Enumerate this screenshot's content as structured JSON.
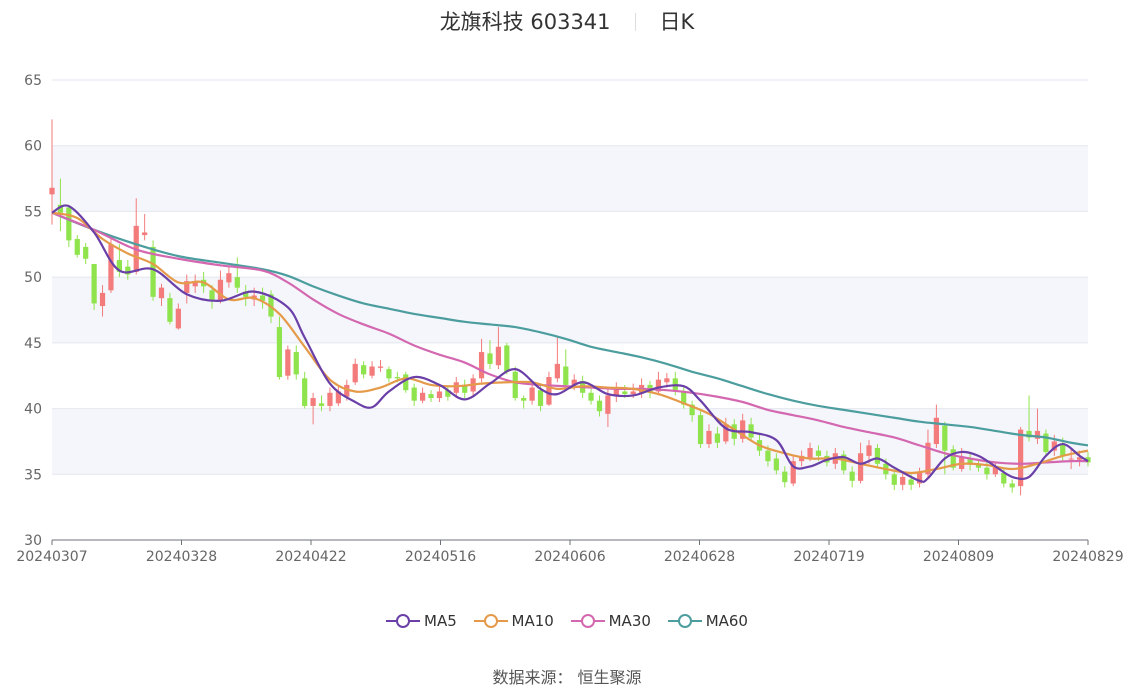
{
  "header": {
    "stock_name_code": "龙旗科技 603341",
    "period": "日K"
  },
  "source": {
    "label": "数据来源：",
    "value": "恒生聚源"
  },
  "colors": {
    "up": "#f37b7b",
    "down": "#8fe34c",
    "ma5": "#6a3fa8",
    "ma10": "#e59a4a",
    "ma30": "#d468b0",
    "ma60": "#4c9d9e",
    "band": "#f4f6fb",
    "grid": "#e4e7f0",
    "axis": "#666666"
  },
  "chart_data": {
    "type": "candlestick",
    "title": "龙旗科技 603341 日K",
    "ylim": [
      30,
      65
    ],
    "yticks": [
      30,
      35,
      40,
      45,
      50,
      55,
      60,
      65
    ],
    "xticks": [
      "20240307",
      "20240328",
      "20240422",
      "20240516",
      "20240606",
      "20240628",
      "20240719",
      "20240809",
      "20240829"
    ],
    "trading_days": 124,
    "legend": [
      {
        "key": "ma5",
        "label": "MA5"
      },
      {
        "key": "ma10",
        "label": "MA10"
      },
      {
        "key": "ma30",
        "label": "MA30"
      },
      {
        "key": "ma60",
        "label": "MA60"
      }
    ],
    "ohlc": [
      [
        56.3,
        56.8,
        62,
        54
      ],
      [
        55.5,
        54.9,
        57.5,
        53.5
      ],
      [
        55.3,
        52.8,
        55.5,
        52.3
      ],
      [
        52.9,
        51.7,
        53.2,
        51.5
      ],
      [
        52.3,
        51.4,
        52.6,
        51
      ],
      [
        51,
        48,
        51,
        47.5
      ],
      [
        47.8,
        48.8,
        49.4,
        47
      ],
      [
        49,
        52.5,
        53,
        48.8
      ],
      [
        51.3,
        50.4,
        52.5,
        50
      ],
      [
        50.8,
        50.2,
        51.3,
        49.8
      ],
      [
        50.4,
        53.9,
        56,
        50.2
      ],
      [
        53.2,
        53.4,
        54.8,
        52.8
      ],
      [
        52.3,
        48.5,
        52.8,
        48.2
      ],
      [
        48.4,
        49.2,
        49.5,
        47.8
      ],
      [
        48.4,
        46.6,
        48.8,
        46.4
      ],
      [
        46.1,
        47.6,
        48,
        46
      ],
      [
        48.8,
        49.7,
        50.2,
        48
      ],
      [
        49.3,
        49.6,
        50.2,
        48.8
      ],
      [
        49.8,
        49.3,
        50.4,
        48.8
      ],
      [
        49,
        48.3,
        49.4,
        47.6
      ],
      [
        48.2,
        49.8,
        50.5,
        48
      ],
      [
        49.6,
        50.3,
        50.8,
        49.2
      ],
      [
        50,
        49.2,
        51.5,
        48.8
      ],
      [
        48.9,
        48.5,
        49.4,
        47.8
      ],
      [
        48.3,
        48.6,
        49.2,
        47.8
      ],
      [
        48.6,
        48.2,
        49.2,
        47.6
      ],
      [
        48.7,
        47,
        49,
        46.5
      ],
      [
        46.2,
        42.4,
        47,
        42.2
      ],
      [
        42.5,
        44.5,
        44.8,
        42.2
      ],
      [
        44.3,
        42.6,
        44.8,
        42.2
      ],
      [
        42.3,
        40.2,
        42.8,
        40
      ],
      [
        40.2,
        40.8,
        41.2,
        38.8
      ],
      [
        40.4,
        40.2,
        41,
        39.8
      ],
      [
        40.2,
        41.2,
        41.6,
        39.8
      ],
      [
        40.4,
        41.3,
        41.8,
        40.2
      ],
      [
        40.9,
        41.8,
        42.2,
        40.6
      ],
      [
        42,
        43.4,
        43.8,
        41.8
      ],
      [
        43.3,
        42.6,
        43.6,
        42.3
      ],
      [
        42.5,
        43.2,
        43.6,
        42.3
      ],
      [
        43.1,
        43.2,
        43.7,
        42.8
      ],
      [
        43,
        42.3,
        43.2,
        42
      ],
      [
        42.4,
        42.3,
        42.8,
        42
      ],
      [
        42.6,
        41.4,
        42.8,
        41.2
      ],
      [
        41.6,
        40.6,
        41.9,
        40.2
      ],
      [
        40.6,
        41.2,
        41.6,
        40.4
      ],
      [
        41.1,
        40.8,
        41.4,
        40.5
      ],
      [
        40.8,
        41.3,
        41.8,
        40.5
      ],
      [
        41.4,
        40.9,
        41.7,
        40.6
      ],
      [
        41.2,
        42,
        42.4,
        40.8
      ],
      [
        41.8,
        41.2,
        42.2,
        40.8
      ],
      [
        41.3,
        42.3,
        42.6,
        41
      ],
      [
        42.3,
        44.3,
        45.3,
        42
      ],
      [
        44.2,
        43.4,
        45.2,
        43
      ],
      [
        43.3,
        44.7,
        46.2,
        43
      ],
      [
        44.8,
        42.8,
        45,
        42.6
      ],
      [
        42.8,
        40.8,
        43.2,
        40.6
      ],
      [
        40.8,
        40.6,
        41,
        40
      ],
      [
        40.6,
        41.6,
        42,
        40.3
      ],
      [
        41.4,
        40.2,
        41.8,
        39.8
      ],
      [
        40.3,
        42.4,
        42.8,
        40.2
      ],
      [
        42.3,
        43.4,
        45.4,
        42
      ],
      [
        43.2,
        41.8,
        44.5,
        41.5
      ],
      [
        41.8,
        42.2,
        42.6,
        41.4
      ],
      [
        42.1,
        41.2,
        42.5,
        40.8
      ],
      [
        41.2,
        40.6,
        41.6,
        40.3
      ],
      [
        40.6,
        39.8,
        41,
        39.4
      ],
      [
        39.6,
        41,
        41.6,
        38.6
      ],
      [
        41,
        41.5,
        42,
        40.5
      ],
      [
        41.3,
        41.1,
        41.8,
        40.8
      ],
      [
        41.1,
        41.3,
        41.9,
        40.8
      ],
      [
        41.2,
        41.8,
        42.3,
        40.8
      ],
      [
        41.8,
        41.2,
        42.1,
        40.8
      ],
      [
        41.3,
        42.2,
        42.8,
        41
      ],
      [
        42,
        42.3,
        42.7,
        41.6
      ],
      [
        42.3,
        41.4,
        42.8,
        41
      ],
      [
        41.3,
        40.3,
        41.6,
        40
      ],
      [
        40.3,
        39.5,
        40.6,
        39
      ],
      [
        39.5,
        37.3,
        39.8,
        37
      ],
      [
        37.3,
        38.3,
        38.8,
        37
      ],
      [
        38.1,
        37.4,
        38.6,
        37
      ],
      [
        37.5,
        38.8,
        39.3,
        37.3
      ],
      [
        38.8,
        37.7,
        39.2,
        37.2
      ],
      [
        37.7,
        39.1,
        39.6,
        37.4
      ],
      [
        38.8,
        37.8,
        39.3,
        37.5
      ],
      [
        37.6,
        36.8,
        38,
        36.4
      ],
      [
        36.8,
        36,
        37.2,
        35.6
      ],
      [
        36.2,
        35.3,
        36.6,
        35
      ],
      [
        35.2,
        34.4,
        35.6,
        34
      ],
      [
        34.3,
        36,
        36.4,
        34.1
      ],
      [
        36,
        36.4,
        36.8,
        35.6
      ],
      [
        36.2,
        37,
        37.4,
        36
      ],
      [
        36.8,
        36.4,
        37.2,
        36
      ],
      [
        36.4,
        35.9,
        36.8,
        35.6
      ],
      [
        35.8,
        36.6,
        37,
        35.4
      ],
      [
        36.5,
        35.3,
        36.8,
        35
      ],
      [
        35.2,
        34.5,
        35.6,
        34
      ],
      [
        34.5,
        36.6,
        37.4,
        34.3
      ],
      [
        36.4,
        37.2,
        37.6,
        35.8
      ],
      [
        37,
        35.8,
        37.3,
        35.5
      ],
      [
        35.8,
        35,
        36.2,
        34.6
      ],
      [
        35,
        34.2,
        35.4,
        33.8
      ],
      [
        34.2,
        34.8,
        35.2,
        33.8
      ],
      [
        34.6,
        34.2,
        35,
        33.8
      ],
      [
        34.3,
        35.1,
        35.5,
        34
      ],
      [
        35,
        37.4,
        38.4,
        34.6
      ],
      [
        37.3,
        39.3,
        40.3,
        37
      ],
      [
        38.7,
        36.8,
        39,
        35
      ],
      [
        36.9,
        35.5,
        37.2,
        35.3
      ],
      [
        35.4,
        36.3,
        37,
        35.2
      ],
      [
        36.2,
        35.8,
        36.6,
        35.3
      ],
      [
        35.7,
        35.5,
        36.1,
        35.2
      ],
      [
        35.5,
        35,
        36,
        34.6
      ],
      [
        35,
        35.6,
        35.9,
        34.8
      ],
      [
        35.1,
        34.3,
        35.4,
        34
      ],
      [
        34.3,
        34,
        34.6,
        33.6
      ],
      [
        34.1,
        38.4,
        38.6,
        33.4
      ],
      [
        38.3,
        37.8,
        41,
        37.5
      ],
      [
        37.7,
        38.3,
        40,
        37.3
      ],
      [
        38.1,
        36.7,
        38.4,
        36.5
      ],
      [
        36.8,
        37.5,
        38,
        36.4
      ],
      [
        37.3,
        36.4,
        37.8,
        36
      ],
      [
        36.2,
        36.2,
        37,
        35.4
      ],
      [
        36.1,
        36.3,
        36.8,
        35.6
      ],
      [
        36.3,
        35.9,
        36.7,
        35.6
      ]
    ],
    "ma5": [
      [
        0,
        54.9
      ],
      [
        2,
        55.4
      ],
      [
        5,
        53.4
      ],
      [
        8,
        50.5
      ],
      [
        12,
        50.6
      ],
      [
        16,
        48.7
      ],
      [
        20,
        48.2
      ],
      [
        24,
        48.9
      ],
      [
        28,
        47.7
      ],
      [
        30,
        45.4
      ],
      [
        33,
        41.9
      ],
      [
        36,
        40.5
      ],
      [
        38,
        40.1
      ],
      [
        40,
        41.3
      ],
      [
        43,
        42.4
      ],
      [
        46,
        41.8
      ],
      [
        49,
        40.7
      ],
      [
        52,
        41.9
      ],
      [
        55,
        43
      ],
      [
        58,
        41.5
      ],
      [
        60,
        41.1
      ],
      [
        63,
        42
      ],
      [
        66,
        41.1
      ],
      [
        69,
        41
      ],
      [
        72,
        41.6
      ],
      [
        75,
        41.7
      ],
      [
        77,
        40.6
      ],
      [
        80,
        38.5
      ],
      [
        83,
        38.2
      ],
      [
        86,
        37.6
      ],
      [
        88,
        35.6
      ],
      [
        90,
        35.6
      ],
      [
        92,
        36.1
      ],
      [
        94,
        36.3
      ],
      [
        96,
        35.8
      ],
      [
        98,
        36.2
      ],
      [
        100,
        35.5
      ],
      [
        103,
        34.5
      ],
      [
        104,
        34.7
      ],
      [
        106,
        36.2
      ],
      [
        108,
        36.7
      ],
      [
        110,
        36.4
      ],
      [
        112,
        35.6
      ],
      [
        114,
        34.8
      ],
      [
        116,
        34.8
      ],
      [
        118,
        36.4
      ],
      [
        120,
        37.3
      ],
      [
        122,
        36.4
      ],
      [
        123,
        36
      ]
    ],
    "ma10": [
      [
        0,
        54.9
      ],
      [
        3,
        54.5
      ],
      [
        6,
        52.9
      ],
      [
        9,
        51.8
      ],
      [
        12,
        51
      ],
      [
        15,
        49.6
      ],
      [
        18,
        49.6
      ],
      [
        21,
        48.3
      ],
      [
        24,
        48.4
      ],
      [
        27,
        47.2
      ],
      [
        30,
        44.7
      ],
      [
        33,
        42.2
      ],
      [
        36,
        41.3
      ],
      [
        39,
        41.6
      ],
      [
        42,
        42.3
      ],
      [
        45,
        41.8
      ],
      [
        48,
        41.7
      ],
      [
        51,
        41.9
      ],
      [
        54,
        42
      ],
      [
        57,
        42
      ],
      [
        60,
        41.5
      ],
      [
        63,
        41.7
      ],
      [
        66,
        41.6
      ],
      [
        69,
        41.5
      ],
      [
        72,
        41.1
      ],
      [
        75,
        40.4
      ],
      [
        78,
        39.6
      ],
      [
        81,
        38.4
      ],
      [
        84,
        37.2
      ],
      [
        87,
        36.6
      ],
      [
        90,
        36.2
      ],
      [
        93,
        36.2
      ],
      [
        96,
        35.8
      ],
      [
        99,
        35.4
      ],
      [
        102,
        35.1
      ],
      [
        105,
        35.4
      ],
      [
        108,
        35.8
      ],
      [
        111,
        35.7
      ],
      [
        114,
        35.4
      ],
      [
        117,
        35.8
      ],
      [
        120,
        36.4
      ],
      [
        123,
        36.8
      ]
    ],
    "ma30": [
      [
        0,
        54.9
      ],
      [
        5,
        53.6
      ],
      [
        10,
        52.1
      ],
      [
        15,
        51.4
      ],
      [
        20,
        50.9
      ],
      [
        25,
        50.5
      ],
      [
        28,
        49.6
      ],
      [
        31,
        48.3
      ],
      [
        34,
        47.2
      ],
      [
        37,
        46.4
      ],
      [
        40,
        45.7
      ],
      [
        43,
        44.8
      ],
      [
        46,
        44.1
      ],
      [
        49,
        43.5
      ],
      [
        52,
        42.6
      ],
      [
        55,
        42
      ],
      [
        58,
        41.8
      ],
      [
        61,
        41.7
      ],
      [
        64,
        41.6
      ],
      [
        67,
        41.5
      ],
      [
        70,
        41.5
      ],
      [
        73,
        41.4
      ],
      [
        76,
        41.2
      ],
      [
        79,
        40.9
      ],
      [
        82,
        40.5
      ],
      [
        85,
        39.9
      ],
      [
        88,
        39.5
      ],
      [
        91,
        39.1
      ],
      [
        94,
        38.6
      ],
      [
        97,
        38.2
      ],
      [
        100,
        37.8
      ],
      [
        103,
        37.2
      ],
      [
        106,
        36.6
      ],
      [
        109,
        36.2
      ],
      [
        112,
        35.9
      ],
      [
        115,
        35.8
      ],
      [
        118,
        35.9
      ],
      [
        121,
        36
      ],
      [
        123,
        36
      ]
    ],
    "ma60": [
      [
        0,
        54.9
      ],
      [
        5,
        53.6
      ],
      [
        10,
        52.5
      ],
      [
        15,
        51.6
      ],
      [
        20,
        51.1
      ],
      [
        25,
        50.6
      ],
      [
        28,
        50.1
      ],
      [
        31,
        49.3
      ],
      [
        34,
        48.6
      ],
      [
        37,
        48
      ],
      [
        40,
        47.6
      ],
      [
        43,
        47.2
      ],
      [
        46,
        46.9
      ],
      [
        49,
        46.6
      ],
      [
        52,
        46.4
      ],
      [
        55,
        46.2
      ],
      [
        58,
        45.8
      ],
      [
        61,
        45.3
      ],
      [
        64,
        44.7
      ],
      [
        67,
        44.3
      ],
      [
        70,
        43.9
      ],
      [
        73,
        43.4
      ],
      [
        76,
        42.8
      ],
      [
        79,
        42.3
      ],
      [
        82,
        41.7
      ],
      [
        85,
        41.1
      ],
      [
        88,
        40.6
      ],
      [
        91,
        40.2
      ],
      [
        94,
        39.9
      ],
      [
        97,
        39.6
      ],
      [
        100,
        39.3
      ],
      [
        103,
        39
      ],
      [
        106,
        38.8
      ],
      [
        109,
        38.6
      ],
      [
        112,
        38.3
      ],
      [
        115,
        38
      ],
      [
        118,
        37.8
      ],
      [
        121,
        37.4
      ],
      [
        123,
        37.2
      ]
    ]
  }
}
